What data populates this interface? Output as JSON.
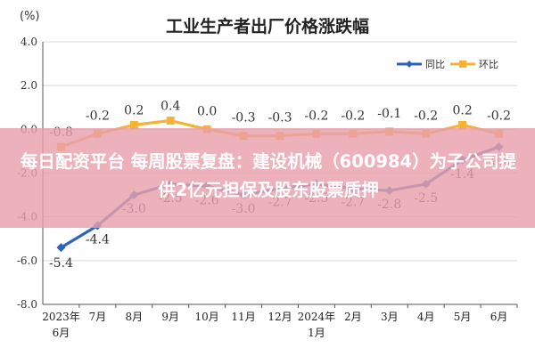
{
  "chart_data": {
    "type": "line",
    "title": "工业生产者出厂价格涨跌幅",
    "ylabel": "(%)",
    "ylim": [
      -8.0,
      4.0
    ],
    "yticks": [
      "4.0",
      "2.0",
      "0.0",
      "-2.0",
      "-4.0",
      "-6.0",
      "-8.0"
    ],
    "categories": [
      {
        "line1": "2023年",
        "line2": "6月"
      },
      {
        "line1": "7月",
        "line2": ""
      },
      {
        "line1": "8月",
        "line2": ""
      },
      {
        "line1": "9月",
        "line2": ""
      },
      {
        "line1": "10月",
        "line2": ""
      },
      {
        "line1": "11月",
        "line2": ""
      },
      {
        "line1": "12月",
        "line2": ""
      },
      {
        "line1": "2024年",
        "line2": "1月"
      },
      {
        "line1": "2月",
        "line2": ""
      },
      {
        "line1": "3月",
        "line2": ""
      },
      {
        "line1": "4月",
        "line2": ""
      },
      {
        "line1": "5月",
        "line2": ""
      },
      {
        "line1": "6月",
        "line2": ""
      }
    ],
    "series": [
      {
        "name": "同比",
        "color": "#2e63b8",
        "values": [
          -5.4,
          -4.4,
          -3.0,
          -2.5,
          -2.6,
          -3.0,
          -2.7,
          -2.5,
          -2.7,
          -2.8,
          -2.5,
          -1.4,
          -0.8
        ],
        "labels": [
          "-5.4",
          "-4.4",
          "-3.0",
          "-2.5",
          "-2.6",
          "-3.0",
          "-2.7",
          "-2.5",
          "-2.7",
          "-2.8",
          "-2.5",
          "-1.4",
          "-0.8"
        ]
      },
      {
        "name": "环比",
        "color": "#f5b335",
        "values": [
          -0.8,
          -0.2,
          0.2,
          0.4,
          0.0,
          -0.3,
          -0.3,
          -0.2,
          -0.2,
          -0.1,
          -0.2,
          0.2,
          -0.2
        ],
        "labels": [
          "-0.8",
          "-0.2",
          "0.2",
          "0.4",
          "0.0",
          "-0.3",
          "-0.3",
          "-0.2",
          "-0.2",
          "-0.1",
          "-0.2",
          "0.2",
          "-0.2"
        ]
      }
    ],
    "grid": true,
    "legend": "top-right"
  },
  "overlay": {
    "headline": "每日配资平台 每周股票复盘：建设机械（600984）为子公司提供2亿元担保及股东股票质押"
  }
}
